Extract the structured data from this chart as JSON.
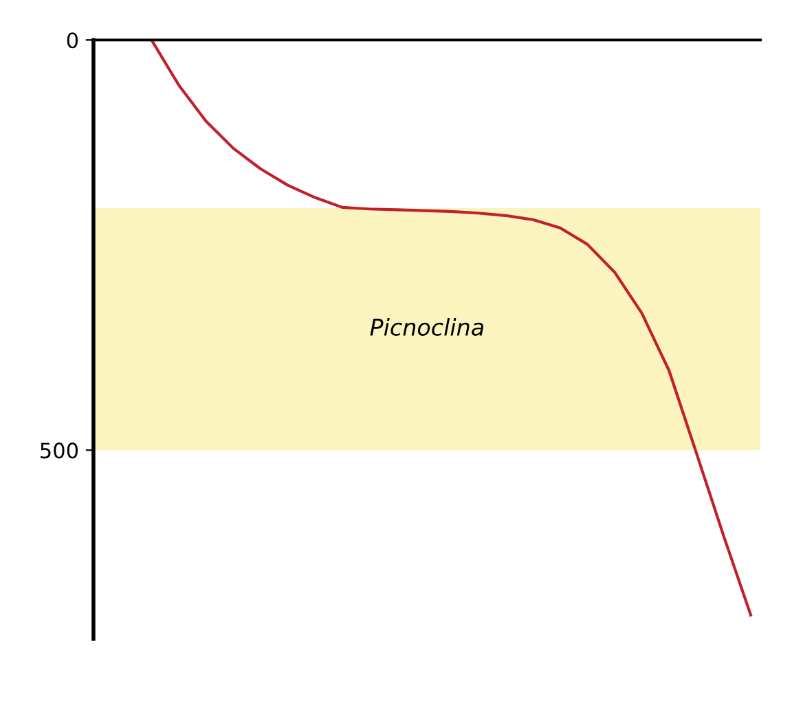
{
  "chart_data": {
    "type": "line",
    "categories": [
      null,
      null,
      null,
      null,
      null,
      null,
      null,
      null,
      null,
      null,
      null,
      null,
      null,
      null,
      null,
      null,
      null,
      null,
      null,
      null,
      null,
      null,
      null
    ],
    "series": [
      {
        "color": "#c0202a",
        "values": [
          0,
          55,
          99,
          132,
          157,
          177,
          192,
          204,
          206,
          207,
          208,
          209,
          211,
          214,
          219,
          229,
          249,
          283,
          333,
          403,
          503,
          604,
          701
        ]
      }
    ],
    "ylim": [
      730,
      0
    ],
    "yticks": [
      0,
      500
    ],
    "tick_labels": "y",
    "grid": false,
    "marker": "none",
    "line_style": "solid",
    "bands": [
      {
        "axis": "y",
        "from": 205,
        "to": 500,
        "label": "Picnoclina",
        "color": "#fcf4bf"
      }
    ]
  }
}
